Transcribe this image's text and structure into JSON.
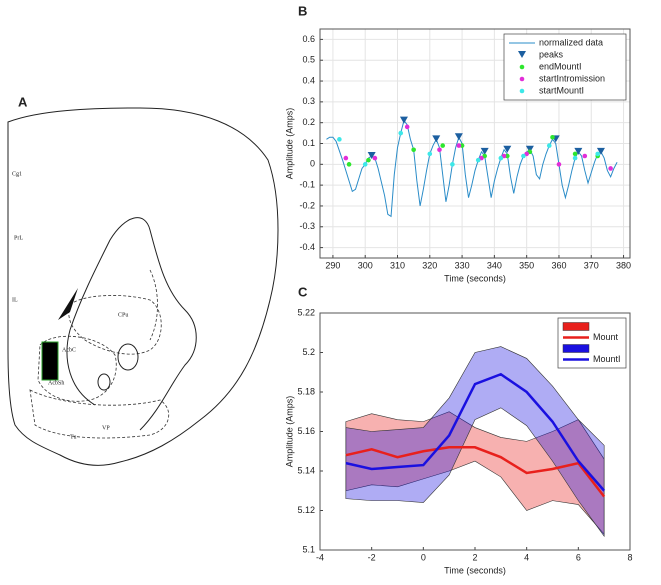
{
  "panel_a": {
    "label": "A",
    "regions": [
      "Cg1",
      "PrL",
      "IL",
      "CPu",
      "AcbC",
      "AcbSh",
      "VP",
      "Tu"
    ]
  },
  "chart_data": [
    {
      "type": "line",
      "panel_label": "B",
      "xlabel": "Time (seconds)",
      "ylabel": "Amplitude (Amps)",
      "xlim": [
        286,
        382
      ],
      "xticks": [
        290,
        300,
        310,
        320,
        330,
        340,
        350,
        360,
        370,
        380
      ],
      "ylim": [
        -0.45,
        0.65
      ],
      "yticks": [
        -0.4,
        -0.3,
        -0.2,
        -0.1,
        0,
        0.1,
        0.2,
        0.3,
        0.4,
        0.5,
        0.6
      ],
      "grid": true,
      "legend": "upper right",
      "series": [
        {
          "name": "normalized data",
          "style": "line",
          "color": "#2a8cc8",
          "x": [
            288,
            289,
            290,
            291,
            293,
            295,
            296,
            297,
            298,
            299,
            300,
            301,
            302,
            303,
            304,
            306,
            307,
            308,
            309,
            310,
            311,
            312,
            313,
            314,
            315,
            316,
            317,
            318,
            319,
            320,
            321,
            322,
            323,
            324,
            325,
            326,
            327,
            328,
            329,
            330,
            331,
            332,
            333,
            334,
            335,
            336,
            337,
            338,
            339,
            340,
            341,
            342,
            343,
            344,
            345,
            346,
            347,
            348,
            349,
            350,
            351,
            352,
            353,
            354,
            355,
            356,
            357,
            358,
            359,
            360,
            361,
            362,
            363,
            364,
            365,
            366,
            367,
            368,
            369,
            370,
            371,
            372,
            373,
            374,
            375,
            376,
            377,
            378
          ],
          "values": [
            0.12,
            0.13,
            0.13,
            0.11,
            0.02,
            -0.08,
            -0.13,
            -0.12,
            -0.07,
            -0.02,
            0,
            0.03,
            0.04,
            0.03,
            -0.02,
            -0.15,
            -0.24,
            -0.25,
            -0.05,
            0.08,
            0.15,
            0.21,
            0.19,
            0.12,
            0.07,
            -0.08,
            -0.2,
            -0.12,
            -0.03,
            0.05,
            0.09,
            0.12,
            0.08,
            -0.05,
            -0.18,
            -0.1,
            0,
            0.08,
            0.13,
            0.1,
            -0.05,
            -0.16,
            -0.1,
            -0.03,
            0.02,
            0.06,
            0.04,
            -0.06,
            -0.16,
            -0.08,
            -0.02,
            0.03,
            0.07,
            0.05,
            -0.06,
            -0.14,
            -0.06,
            0,
            0.04,
            0.06,
            0.07,
            0.04,
            -0.05,
            -0.07,
            0,
            0.05,
            0.09,
            0.12,
            0.1,
            0,
            -0.1,
            -0.16,
            -0.1,
            -0.03,
            0.03,
            0.06,
            0.04,
            -0.03,
            -0.09,
            -0.04,
            0.01,
            0.05,
            0.06,
            0.03,
            -0.03,
            -0.06,
            -0.02,
            0.01
          ]
        },
        {
          "name": "peaks",
          "style": "triangle",
          "color": "#1c5fa0",
          "x": [
            302,
            312,
            322,
            329,
            337,
            344,
            351,
            359,
            366,
            373
          ],
          "values": [
            0.04,
            0.21,
            0.12,
            0.13,
            0.06,
            0.07,
            0.07,
            0.12,
            0.06,
            0.06
          ]
        },
        {
          "name": "endMountI",
          "style": "dot",
          "color": "#2ee62e",
          "x": [
            295,
            301,
            315,
            324,
            330,
            337,
            344,
            351,
            358,
            365,
            372
          ],
          "values": [
            0,
            0.02,
            0.07,
            0.09,
            0.09,
            0.04,
            0.04,
            0.06,
            0.13,
            0.05,
            0.04
          ]
        },
        {
          "name": "startIntromission",
          "style": "dot",
          "color": "#e22ed8",
          "x": [
            294,
            303,
            313,
            323,
            329,
            336,
            343,
            350,
            360,
            368,
            376
          ],
          "values": [
            0.03,
            0.03,
            0.18,
            0.07,
            0.09,
            0.03,
            0.04,
            0.05,
            0,
            0.04,
            -0.02
          ]
        },
        {
          "name": "startMountI",
          "style": "dot",
          "color": "#3ce8e8",
          "x": [
            292,
            300,
            311,
            320,
            327,
            335,
            342,
            349,
            357,
            365,
            372
          ],
          "values": [
            0.12,
            0,
            0.15,
            0.05,
            0,
            0.02,
            0.03,
            0.04,
            0.09,
            0.03,
            0.05
          ]
        }
      ]
    },
    {
      "type": "line",
      "panel_label": "C",
      "xlabel": "Time (seconds)",
      "ylabel": "Amplitude (Amps)",
      "xlim": [
        -4,
        8
      ],
      "xticks": [
        -4,
        -2,
        0,
        2,
        4,
        6,
        8
      ],
      "ylim": [
        5.1,
        5.22
      ],
      "yticks": [
        5.1,
        5.12,
        5.14,
        5.16,
        5.18,
        5.2,
        5.22
      ],
      "grid": false,
      "legend": "upper right",
      "series": [
        {
          "name": "Mount",
          "style": "band",
          "color": "#e8201c",
          "x": [
            -3,
            -2,
            -1,
            0,
            1,
            2,
            3,
            4,
            5,
            6,
            7
          ],
          "values": [
            5.148,
            5.151,
            5.147,
            5.15,
            5.152,
            5.152,
            5.147,
            5.139,
            5.141,
            5.144,
            5.127
          ],
          "upper": [
            5.165,
            5.169,
            5.166,
            5.165,
            5.17,
            5.162,
            5.157,
            5.155,
            5.16,
            5.166,
            5.146
          ],
          "lower": [
            5.13,
            5.133,
            5.132,
            5.136,
            5.14,
            5.145,
            5.137,
            5.12,
            5.125,
            5.123,
            5.108
          ]
        },
        {
          "name": "MountI",
          "style": "band",
          "color": "#1a10e0",
          "x": [
            -3,
            -2,
            -1,
            0,
            1,
            2,
            3,
            4,
            5,
            6,
            7
          ],
          "values": [
            5.144,
            5.141,
            5.142,
            5.143,
            5.158,
            5.184,
            5.189,
            5.18,
            5.165,
            5.145,
            5.13
          ],
          "upper": [
            5.162,
            5.16,
            5.161,
            5.162,
            5.177,
            5.2,
            5.203,
            5.197,
            5.183,
            5.166,
            5.153
          ],
          "lower": [
            5.126,
            5.125,
            5.125,
            5.124,
            5.138,
            5.166,
            5.172,
            5.163,
            5.145,
            5.125,
            5.107
          ]
        }
      ]
    }
  ]
}
